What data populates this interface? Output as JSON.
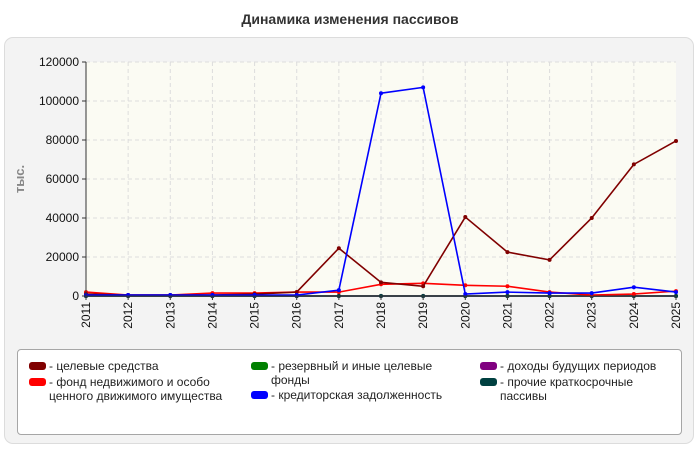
{
  "chart_data": {
    "type": "line",
    "title": "Динамика изменения пассивов",
    "ylabel": "тыс.",
    "xlabel": "",
    "ylim": [
      0,
      120000
    ],
    "yticks": [
      "0",
      "20000",
      "40000",
      "60000",
      "80000",
      "100000",
      "120000"
    ],
    "x": [
      "2011",
      "2012",
      "2013",
      "2014",
      "2015",
      "2016",
      "2017",
      "2018",
      "2019",
      "2020",
      "2021",
      "2022",
      "2023",
      "2024",
      "2025"
    ],
    "grid": true,
    "legend_position": "bottom",
    "series": [
      {
        "name": "- целевые средства",
        "color": "#800000",
        "values": [
          1000,
          500,
          500,
          500,
          1000,
          2000,
          24500,
          7000,
          5000,
          40500,
          22500,
          18500,
          40000,
          67500,
          79500
        ]
      },
      {
        "name": "- фонд недвижимого и особо ценного движимого имущества",
        "color": "#ff0000",
        "values": [
          2000,
          500,
          500,
          1500,
          1500,
          2000,
          2000,
          6000,
          6500,
          5500,
          5000,
          2000,
          500,
          1000,
          2500
        ]
      },
      {
        "name": "- резервный и иные целевые фонды",
        "color": "#008000",
        "values": [
          0,
          0,
          0,
          0,
          0,
          0,
          0,
          0,
          0,
          0,
          0,
          0,
          0,
          0,
          0
        ]
      },
      {
        "name": "- кредиторская задолженность",
        "color": "#0000ff",
        "values": [
          500,
          500,
          500,
          500,
          500,
          500,
          3000,
          104000,
          107000,
          1000,
          2000,
          1500,
          1500,
          4500,
          2000
        ]
      },
      {
        "name": "- доходы будущих периодов",
        "color": "#800080",
        "values": [
          0,
          0,
          0,
          0,
          0,
          0,
          0,
          0,
          0,
          0,
          0,
          0,
          0,
          0,
          0
        ]
      },
      {
        "name": "- прочие краткосрочные пассивы",
        "color": "#004040",
        "values": [
          0,
          0,
          0,
          0,
          0,
          0,
          0,
          0,
          0,
          0,
          0,
          0,
          0,
          0,
          0
        ]
      }
    ]
  }
}
